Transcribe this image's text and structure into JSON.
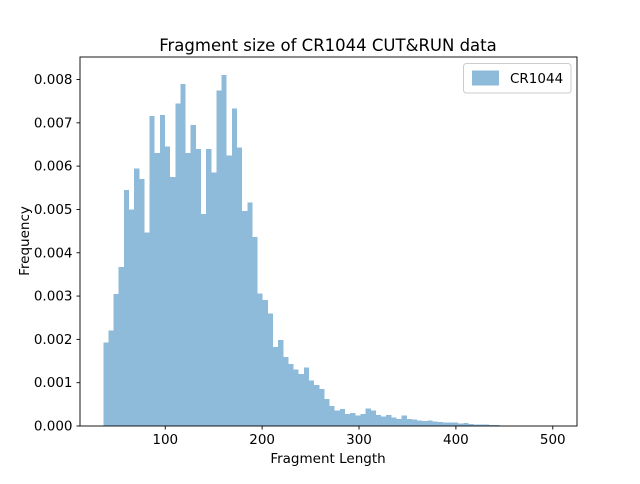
{
  "chart_data": {
    "type": "bar",
    "subtype": "histogram",
    "title": "Fragment size of CR1044 CUT&RUN data",
    "xlabel": "Fragment Length",
    "ylabel": "Frequency",
    "grid": false,
    "legend": {
      "position": "upper right",
      "entries": [
        "CR1044"
      ]
    },
    "bar_color": "#8fbbda",
    "axis_color": "#000000",
    "legend_border_color": "#cccccc",
    "xlim": [
      12,
      525
    ],
    "ylim": [
      0,
      0.00852
    ],
    "x_ticks": [
      100,
      200,
      300,
      400,
      500
    ],
    "y_ticks": [
      0,
      0.001,
      0.002,
      0.003,
      0.004,
      0.005,
      0.006,
      0.007,
      0.008
    ],
    "bins": {
      "start": 36,
      "width": 5.31
    },
    "frequencies": [
      0.00193,
      0.0022,
      0.00305,
      0.00367,
      0.00545,
      0.005,
      0.00595,
      0.0057,
      0.00447,
      0.00716,
      0.0063,
      0.00718,
      0.00645,
      0.00575,
      0.00745,
      0.0079,
      0.0063,
      0.00695,
      0.0064,
      0.0049,
      0.0064,
      0.00585,
      0.00775,
      0.0081,
      0.00625,
      0.00733,
      0.00643,
      0.00496,
      0.00516,
      0.00436,
      0.00306,
      0.00291,
      0.0026,
      0.00182,
      0.00199,
      0.00159,
      0.00143,
      0.0013,
      0.0012,
      0.00135,
      0.00105,
      0.00095,
      0.00085,
      0.00062,
      0.00046,
      0.00036,
      0.00039,
      0.00028,
      0.0003,
      0.00024,
      0.00028,
      0.0004,
      0.00036,
      0.00025,
      0.00022,
      0.00025,
      0.0002,
      0.00016,
      0.00024,
      0.00016,
      0.00015,
      0.00013,
      0.00012,
      0.00013,
      0.0001,
      9e-05,
      8e-05,
      8e-05,
      8e-05,
      6e-05,
      7e-05,
      5e-05,
      4e-05,
      3e-05,
      3e-05,
      2e-05,
      2e-05
    ]
  }
}
